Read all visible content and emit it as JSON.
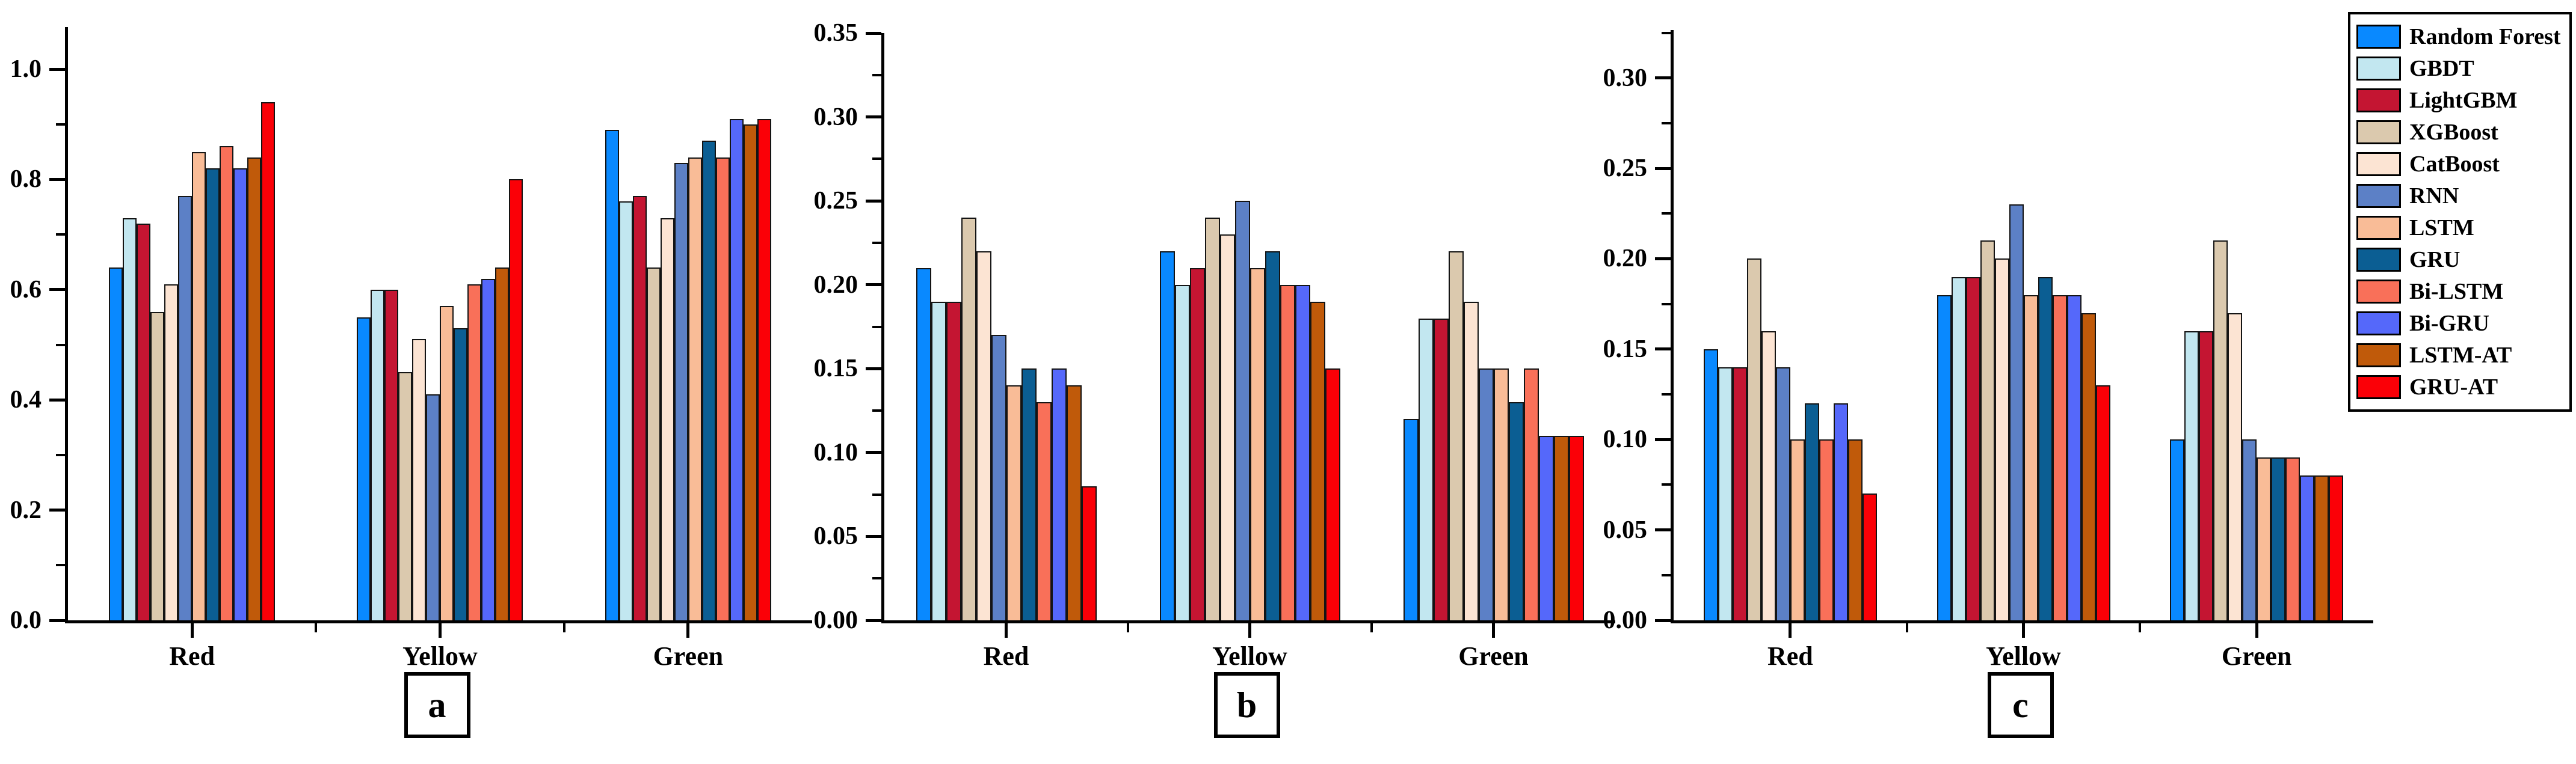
{
  "legend": {
    "position": "top-right",
    "items": [
      {
        "label": "Random Forest",
        "color": "#0989FF"
      },
      {
        "label": "GBDT",
        "color": "#C2E7F0"
      },
      {
        "label": "LightGBM",
        "color": "#C41532"
      },
      {
        "label": "XGBoost",
        "color": "#DBC9AE"
      },
      {
        "label": "CatBoost",
        "color": "#FCE4D3"
      },
      {
        "label": "RNN",
        "color": "#5C80C6"
      },
      {
        "label": "LSTM",
        "color": "#F9BC97"
      },
      {
        "label": "GRU",
        "color": "#0B5E93"
      },
      {
        "label": "Bi-LSTM",
        "color": "#F97059"
      },
      {
        "label": "Bi-GRU",
        "color": "#5568FA"
      },
      {
        "label": "LSTM-AT",
        "color": "#C05A0A"
      },
      {
        "label": "GRU-AT",
        "color": "#FB0007"
      }
    ]
  },
  "chart_data": [
    {
      "type": "bar",
      "panel_label": "a",
      "categories": [
        "Red",
        "Yellow",
        "Green"
      ],
      "ylim": [
        0,
        1.0764
      ],
      "grid": false,
      "y_ticks": [
        {
          "v": 1.0,
          "label": "1.0"
        },
        {
          "v": 0.8,
          "label": "0.8"
        },
        {
          "v": 0.6,
          "label": "0.6"
        },
        {
          "v": 0.4,
          "label": "0.4"
        },
        {
          "v": 0.2,
          "label": "0.2"
        },
        {
          "v": 0.0,
          "label": "0.0"
        }
      ],
      "y_minor_ticks": [
        0.1,
        0.3,
        0.5,
        0.7,
        0.9
      ],
      "series": [
        {
          "name": "Random Forest",
          "values": [
            0.64,
            0.55,
            0.89
          ]
        },
        {
          "name": "GBDT",
          "values": [
            0.73,
            0.6,
            0.76
          ]
        },
        {
          "name": "LightGBM",
          "values": [
            0.72,
            0.6,
            0.77
          ]
        },
        {
          "name": "XGBoost",
          "values": [
            0.56,
            0.45,
            0.64
          ]
        },
        {
          "name": "CatBoost",
          "values": [
            0.61,
            0.51,
            0.73
          ]
        },
        {
          "name": "RNN",
          "values": [
            0.77,
            0.41,
            0.83
          ]
        },
        {
          "name": "LSTM",
          "values": [
            0.85,
            0.57,
            0.84
          ]
        },
        {
          "name": "GRU",
          "values": [
            0.82,
            0.53,
            0.87
          ]
        },
        {
          "name": "Bi-LSTM",
          "values": [
            0.86,
            0.61,
            0.84
          ]
        },
        {
          "name": "Bi-GRU",
          "values": [
            0.82,
            0.62,
            0.91
          ]
        },
        {
          "name": "LSTM-AT",
          "values": [
            0.84,
            0.64,
            0.9
          ]
        },
        {
          "name": "GRU-AT",
          "values": [
            0.94,
            0.8,
            0.91
          ]
        }
      ]
    },
    {
      "type": "bar",
      "panel_label": "b",
      "categories": [
        "Red",
        "Yellow",
        "Green"
      ],
      "ylim": [
        0,
        0.35
      ],
      "grid": false,
      "y_ticks": [
        {
          "v": 0.35,
          "label": "0.35"
        },
        {
          "v": 0.3,
          "label": "0.30"
        },
        {
          "v": 0.25,
          "label": "0.25"
        },
        {
          "v": 0.2,
          "label": "0.20"
        },
        {
          "v": 0.15,
          "label": "0.15"
        },
        {
          "v": 0.1,
          "label": "0.10"
        },
        {
          "v": 0.05,
          "label": "0.05"
        },
        {
          "v": 0.0,
          "label": "0.00"
        }
      ],
      "y_minor_ticks": [
        0.025,
        0.075,
        0.125,
        0.175,
        0.225,
        0.275,
        0.325
      ],
      "series": [
        {
          "name": "Random Forest",
          "values": [
            0.21,
            0.22,
            0.12
          ]
        },
        {
          "name": "GBDT",
          "values": [
            0.19,
            0.2,
            0.18
          ]
        },
        {
          "name": "LightGBM",
          "values": [
            0.19,
            0.21,
            0.18
          ]
        },
        {
          "name": "XGBoost",
          "values": [
            0.24,
            0.24,
            0.22
          ]
        },
        {
          "name": "CatBoost",
          "values": [
            0.22,
            0.23,
            0.19
          ]
        },
        {
          "name": "RNN",
          "values": [
            0.17,
            0.25,
            0.15
          ]
        },
        {
          "name": "LSTM",
          "values": [
            0.14,
            0.21,
            0.15
          ]
        },
        {
          "name": "GRU",
          "values": [
            0.15,
            0.22,
            0.13
          ]
        },
        {
          "name": "Bi-LSTM",
          "values": [
            0.13,
            0.2,
            0.15
          ]
        },
        {
          "name": "Bi-GRU",
          "values": [
            0.15,
            0.2,
            0.11
          ]
        },
        {
          "name": "LSTM-AT",
          "values": [
            0.14,
            0.19,
            0.11
          ]
        },
        {
          "name": "GRU-AT",
          "values": [
            0.08,
            0.15,
            0.11
          ]
        }
      ]
    },
    {
      "type": "bar",
      "panel_label": "c",
      "categories": [
        "Red",
        "Yellow",
        "Green"
      ],
      "ylim": [
        0,
        0.3265
      ],
      "grid": false,
      "y_ticks": [
        {
          "v": 0.3,
          "label": "0.30"
        },
        {
          "v": 0.25,
          "label": "0.25"
        },
        {
          "v": 0.2,
          "label": "0.20"
        },
        {
          "v": 0.15,
          "label": "0.15"
        },
        {
          "v": 0.1,
          "label": "0.10"
        },
        {
          "v": 0.05,
          "label": "0.05"
        },
        {
          "v": 0.0,
          "label": "0.00"
        }
      ],
      "y_minor_ticks": [
        0.025,
        0.075,
        0.125,
        0.175,
        0.225,
        0.275,
        0.325
      ],
      "series": [
        {
          "name": "Random Forest",
          "values": [
            0.15,
            0.18,
            0.1
          ]
        },
        {
          "name": "GBDT",
          "values": [
            0.14,
            0.19,
            0.16
          ]
        },
        {
          "name": "LightGBM",
          "values": [
            0.14,
            0.19,
            0.16
          ]
        },
        {
          "name": "XGBoost",
          "values": [
            0.2,
            0.21,
            0.21
          ]
        },
        {
          "name": "CatBoost",
          "values": [
            0.16,
            0.2,
            0.17
          ]
        },
        {
          "name": "RNN",
          "values": [
            0.14,
            0.23,
            0.1
          ]
        },
        {
          "name": "LSTM",
          "values": [
            0.1,
            0.18,
            0.09
          ]
        },
        {
          "name": "GRU",
          "values": [
            0.12,
            0.19,
            0.09
          ]
        },
        {
          "name": "Bi-LSTM",
          "values": [
            0.1,
            0.18,
            0.09
          ]
        },
        {
          "name": "Bi-GRU",
          "values": [
            0.12,
            0.18,
            0.08
          ]
        },
        {
          "name": "LSTM-AT",
          "values": [
            0.1,
            0.17,
            0.08
          ]
        },
        {
          "name": "GRU-AT",
          "values": [
            0.07,
            0.13,
            0.08
          ]
        }
      ]
    }
  ]
}
